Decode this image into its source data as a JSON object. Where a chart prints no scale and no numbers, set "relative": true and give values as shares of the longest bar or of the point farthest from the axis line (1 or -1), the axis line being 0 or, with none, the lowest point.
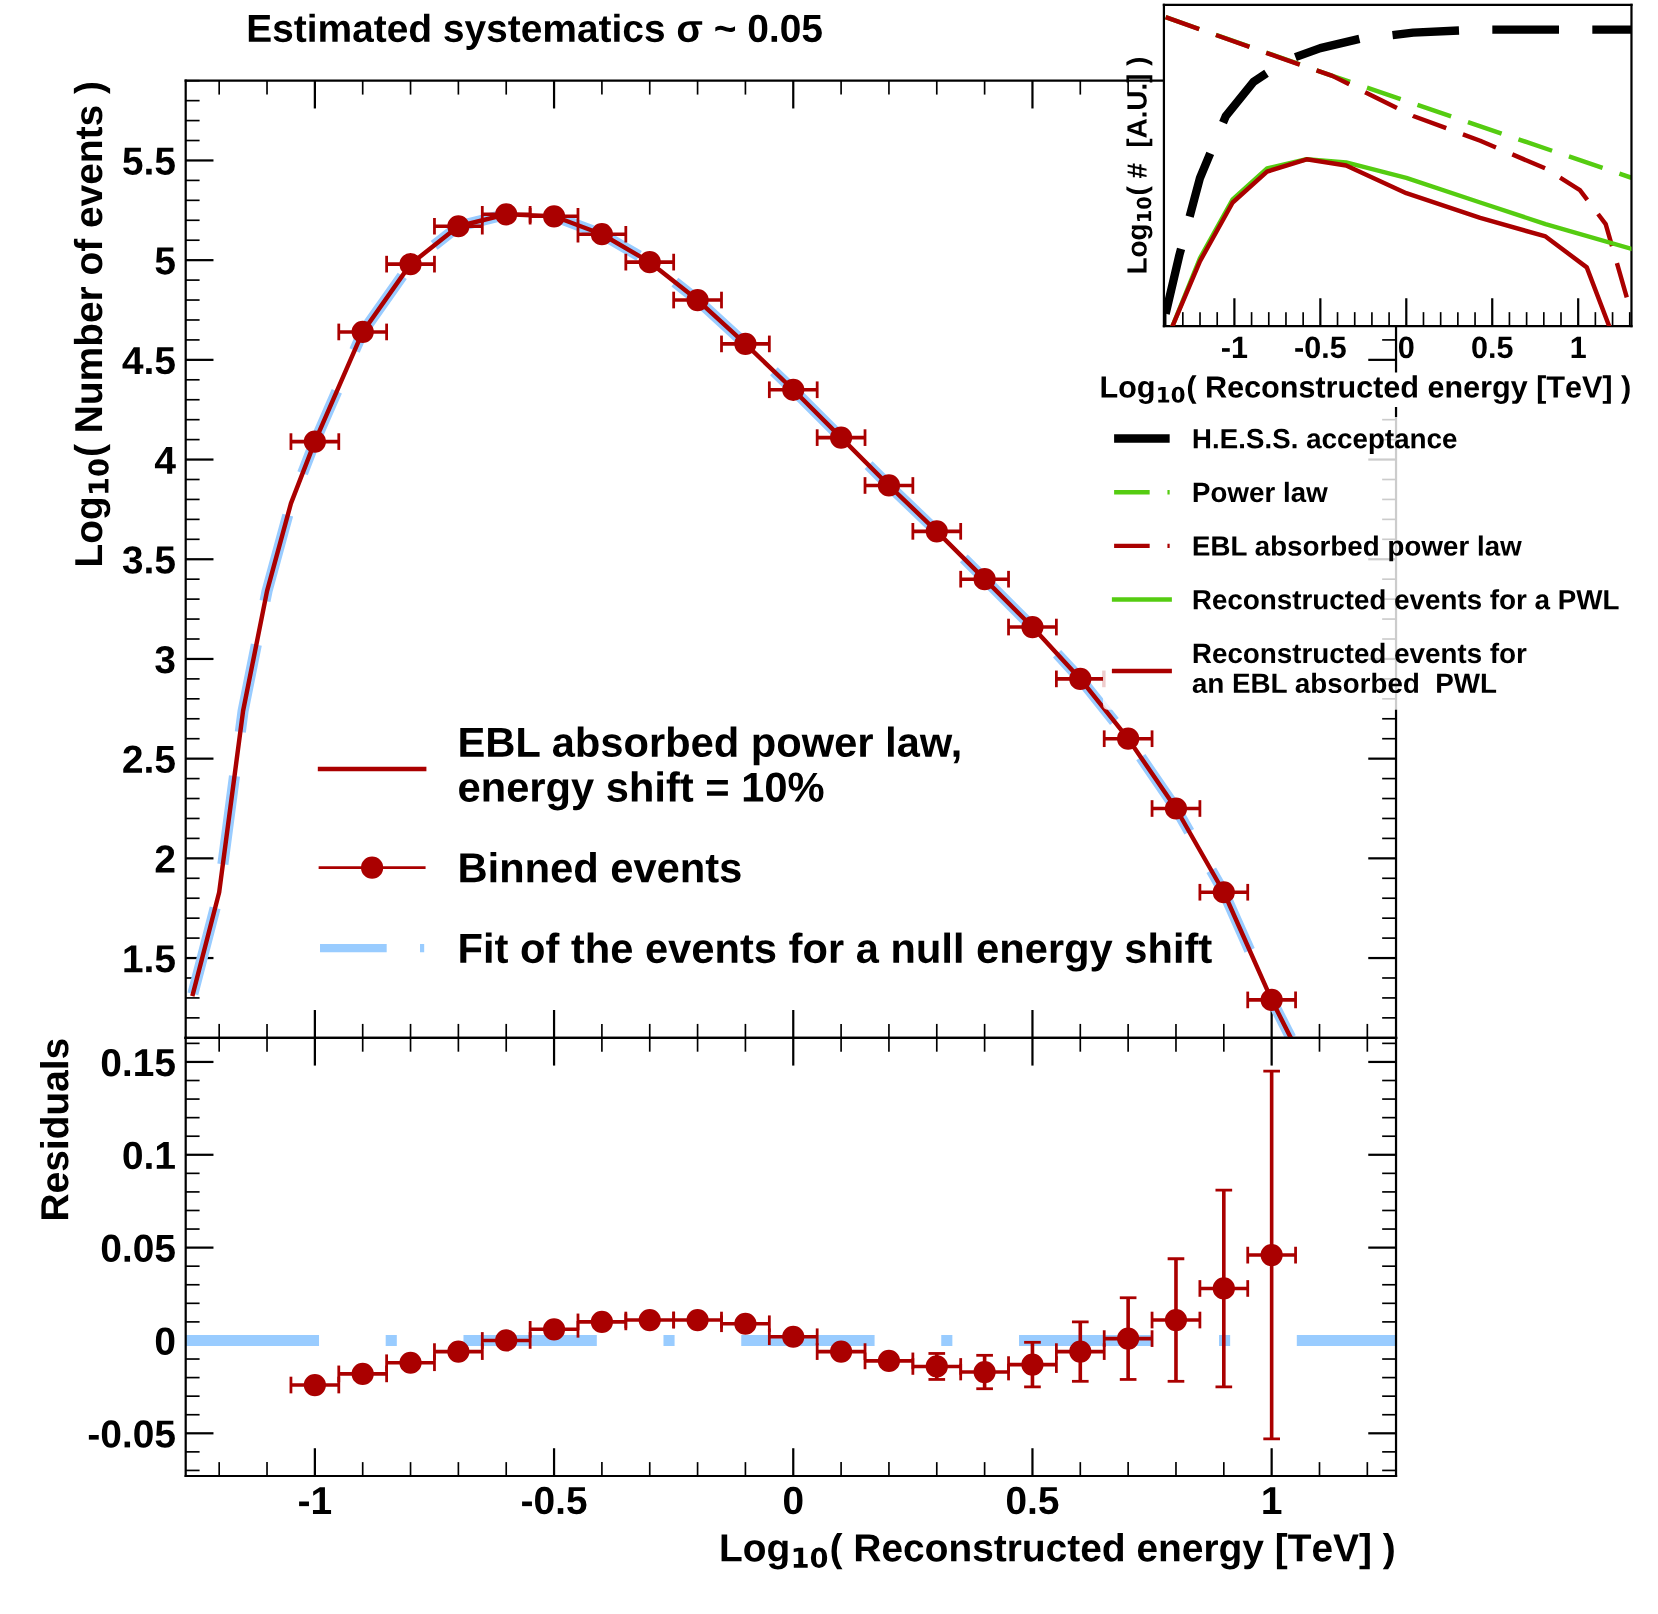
{
  "chart_data": [
    {
      "type": "line",
      "title": "Estimated systematics σ ~ 0.05",
      "ylabel": "Log$_{10}$( Number of events )",
      "xlim": [
        -1.27,
        1.26
      ],
      "ylim": [
        1.1,
        5.9
      ],
      "xticks": [
        -1,
        -0.5,
        0,
        0.5,
        1
      ],
      "yticks": [
        1.5,
        2,
        2.5,
        3,
        3.5,
        4,
        4.5,
        5,
        5.5
      ],
      "tick_labels": "y",
      "legend": "bottom left",
      "grid": false,
      "series": [
        {
          "name": "EBL absorbed power law,\nenergy shift = 10%",
          "type": "line",
          "line_style": "solid",
          "color": "#aa0000",
          "x": [
            -1.255,
            -1.2,
            -1.15,
            -1.1,
            -1.05,
            -1,
            -0.9,
            -0.8,
            -0.7,
            -0.6,
            -0.5,
            -0.4,
            -0.3,
            -0.2,
            -0.1,
            0,
            0.1,
            0.2,
            0.3,
            0.4,
            0.5,
            0.6,
            0.7,
            0.8,
            0.9,
            1.0,
            1.04
          ],
          "values": [
            1.32,
            1.83,
            2.74,
            3.34,
            3.78,
            4.09,
            4.64,
            4.98,
            5.17,
            5.23,
            5.22,
            5.13,
            4.99,
            4.8,
            4.58,
            4.35,
            4.11,
            3.87,
            3.64,
            3.4,
            3.16,
            2.9,
            2.6,
            2.25,
            1.83,
            1.29,
            1.1
          ]
        },
        {
          "name": "Binned events",
          "type": "scatter",
          "marker": "circle",
          "color": "#aa0000",
          "x": [
            -1,
            -0.9,
            -0.8,
            -0.7,
            -0.6,
            -0.5,
            -0.4,
            -0.3,
            -0.2,
            -0.1,
            0,
            0.1,
            0.2,
            0.3,
            0.4,
            0.5,
            0.6,
            0.7,
            0.8,
            0.9,
            1.0
          ],
          "values": [
            4.09,
            4.64,
            4.98,
            5.17,
            5.23,
            5.22,
            5.13,
            4.99,
            4.8,
            4.58,
            4.35,
            4.11,
            3.87,
            3.64,
            3.4,
            3.16,
            2.9,
            2.6,
            2.25,
            1.83,
            1.29
          ],
          "xerrors": [
            0.05,
            0.05,
            0.05,
            0.05,
            0.05,
            0.05,
            0.05,
            0.05,
            0.05,
            0.05,
            0.05,
            0.05,
            0.05,
            0.05,
            0.05,
            0.05,
            0.05,
            0.05,
            0.05,
            0.05,
            0.05
          ]
        },
        {
          "name": "Fit of the events for a null energy shift",
          "type": "line",
          "line_style": "dashed",
          "color": "#99ccff",
          "x": [
            -1.255,
            -1.2,
            -1.15,
            -1.1,
            -1.05,
            -1,
            -0.9,
            -0.8,
            -0.7,
            -0.6,
            -0.5,
            -0.4,
            -0.3,
            -0.2,
            -0.1,
            0,
            0.1,
            0.2,
            0.3,
            0.4,
            0.5,
            0.6,
            0.7,
            0.8,
            0.9,
            1.0,
            1.04
          ],
          "values": [
            1.32,
            1.83,
            2.74,
            3.34,
            3.78,
            4.09,
            4.64,
            4.98,
            5.17,
            5.23,
            5.22,
            5.13,
            4.99,
            4.8,
            4.58,
            4.35,
            4.11,
            3.87,
            3.64,
            3.4,
            3.16,
            2.9,
            2.6,
            2.25,
            1.83,
            1.29,
            1.1
          ]
        }
      ]
    },
    {
      "type": "scatter",
      "xlabel": "Log$_{10}$( Reconstructed energy [TeV] )",
      "ylabel": "Residuals",
      "xlim": [
        -1.27,
        1.26
      ],
      "ylim": [
        -0.073,
        0.163
      ],
      "xticks": [
        -1,
        -0.5,
        0,
        0.5,
        1
      ],
      "yticks": [
        -0.05,
        0,
        0.05,
        0.1,
        0.15
      ],
      "grid": false,
      "ref_lines": [
        {
          "axis": "y",
          "value": 0,
          "color": "#99ccff",
          "line_style": "dashed"
        }
      ],
      "series": [
        {
          "type": "scatter",
          "marker": "circle",
          "color": "#aa0000",
          "x": [
            -1,
            -0.9,
            -0.8,
            -0.7,
            -0.6,
            -0.5,
            -0.4,
            -0.3,
            -0.2,
            -0.1,
            0,
            0.1,
            0.2,
            0.3,
            0.4,
            0.5,
            0.6,
            0.7,
            0.8,
            0.9,
            1.0
          ],
          "values": [
            -0.024,
            -0.018,
            -0.012,
            -0.006,
            0.0,
            0.006,
            0.01,
            0.011,
            0.011,
            0.009,
            0.002,
            -0.006,
            -0.011,
            -0.014,
            -0.017,
            -0.013,
            -0.006,
            0.001,
            0.011,
            0.028,
            0.046
          ],
          "xerrors": [
            0.05,
            0.05,
            0.05,
            0.05,
            0.05,
            0.05,
            0.05,
            0.05,
            0.05,
            0.05,
            0.05,
            0.05,
            0.05,
            0.05,
            0.05,
            0.05,
            0.05,
            0.05,
            0.05,
            0.05,
            0.05
          ],
          "errors": [
            null,
            null,
            null,
            null,
            null,
            null,
            null,
            null,
            null,
            null,
            null,
            null,
            0.003,
            0.007,
            0.009,
            0.012,
            0.016,
            0.022,
            0.033,
            0.053,
            0.099
          ]
        }
      ]
    },
    {
      "type": "line",
      "relative": true,
      "xlabel": "Log$_{10}$( Reconstructed energy [TeV] )",
      "ylabel": "Log$_{10}$( #  [A.U.] )",
      "xlim": [
        -1.41,
        1.31
      ],
      "xticks": [
        -1,
        -0.5,
        0,
        0.5,
        1
      ],
      "legend": "bottom",
      "grid": false,
      "series": [
        {
          "name": "H.E.S.S. acceptance",
          "line_style": "dashed",
          "color": "#000000",
          "x": [
            -1.4,
            -1.32,
            -1.2,
            -1.05,
            -0.89,
            -0.7,
            -0.5,
            -0.27,
            0.04,
            0.43,
            0.81,
            1.31
          ],
          "values": [
            0.04,
            0.23,
            0.48,
            0.68,
            0.79,
            0.86,
            0.9,
            0.93,
            0.95,
            0.96,
            0.96,
            0.96
          ]
        },
        {
          "name": "Power law",
          "line_style": "dashed",
          "color": "#55cc11",
          "x": [
            -1.4,
            -0.43,
            1.31
          ],
          "values": [
            1.0,
            0.81,
            0.48
          ]
        },
        {
          "name": "EBL absorbed power law",
          "line_style": "dashed",
          "color": "#aa0000",
          "x": [
            -1.4,
            -0.74,
            -0.43,
            0.04,
            0.43,
            0.81,
            1.01,
            1.16,
            1.31
          ],
          "values": [
            1.0,
            0.87,
            0.81,
            0.68,
            0.6,
            0.51,
            0.44,
            0.33,
            0.04
          ]
        },
        {
          "name": "Reconstructed events for a PWL",
          "line_style": "solid",
          "color": "#55cc11",
          "x": [
            -1.36,
            -1.2,
            -1.01,
            -0.81,
            -0.58,
            -0.35,
            0,
            0.43,
            0.81,
            1.31
          ],
          "values": [
            0.0,
            0.22,
            0.41,
            0.51,
            0.54,
            0.53,
            0.48,
            0.4,
            0.33,
            0.25
          ]
        },
        {
          "name": "Reconstructed events for\nan EBL absorbed  PWL",
          "line_style": "solid",
          "color": "#aa0000",
          "x": [
            -1.36,
            -1.2,
            -1.01,
            -0.81,
            -0.58,
            -0.35,
            0,
            0.43,
            0.81,
            1.05,
            1.18
          ],
          "values": [
            0.0,
            0.21,
            0.4,
            0.5,
            0.54,
            0.52,
            0.43,
            0.35,
            0.29,
            0.19,
            0.0
          ]
        }
      ]
    }
  ]
}
